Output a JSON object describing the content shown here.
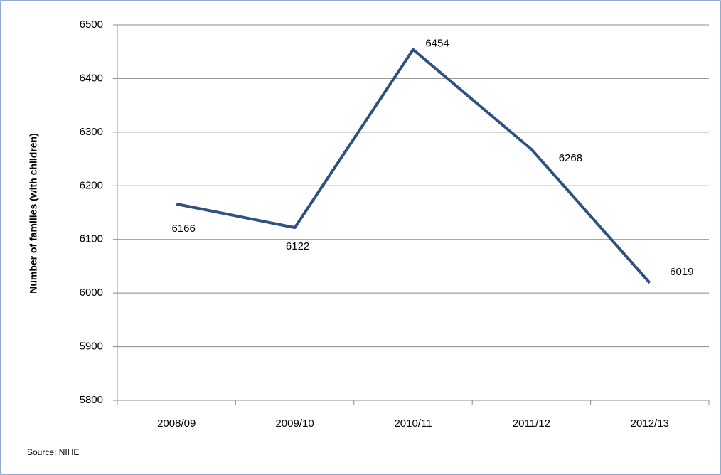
{
  "chart_data": {
    "type": "line",
    "y_label": "Number of families  (with children)",
    "source": "Source: NIHE",
    "categories": [
      "2008/09",
      "2009/10",
      "2010/11",
      "2011/12",
      "2012/13"
    ],
    "values": [
      6166,
      6122,
      6454,
      6268,
      6019
    ],
    "color": "#2e5181",
    "ylim": [
      5800,
      6500
    ],
    "yticks": [
      5800,
      5900,
      6000,
      6100,
      6200,
      6300,
      6400,
      6500
    ],
    "grid": true
  }
}
